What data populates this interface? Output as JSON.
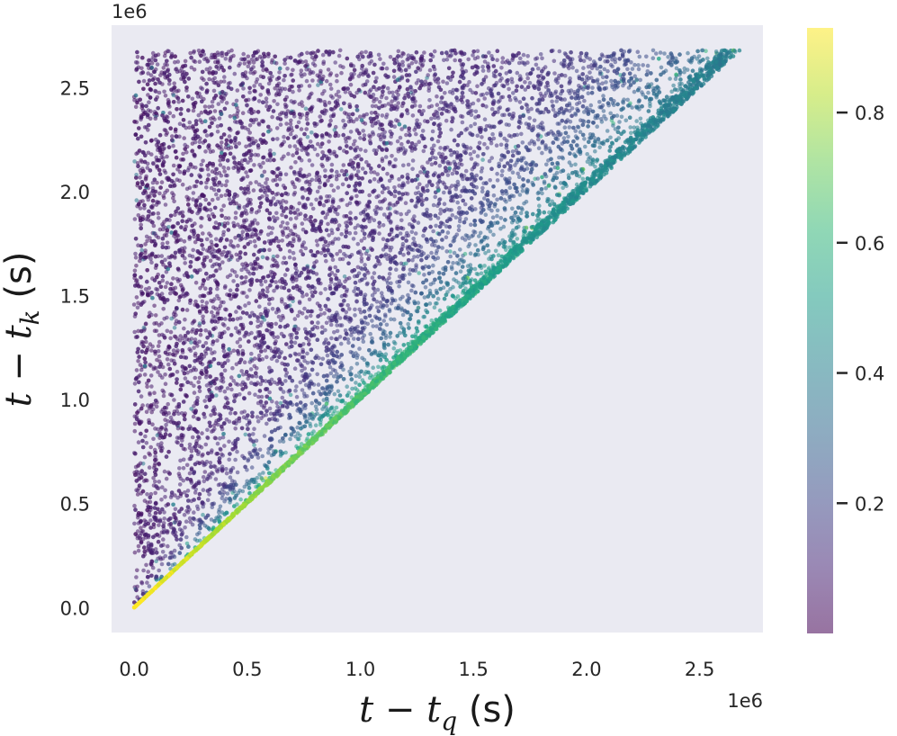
{
  "chart_data": {
    "type": "scatter",
    "title": "",
    "xlabel": "t − t_q (s)",
    "ylabel": "t − t_k (s)",
    "xlabel_parts": {
      "var": "t",
      "minus": " − ",
      "var2": "t",
      "sub": "q",
      "unit": " (s)"
    },
    "ylabel_parts": {
      "var": "t",
      "minus": " − ",
      "var2": "t",
      "sub": "k",
      "unit": " (s)"
    },
    "x_offset_label": "1e6",
    "y_offset_label": "1e6",
    "xlim": [
      -0.1,
      2.78
    ],
    "ylim": [
      -0.12,
      2.8
    ],
    "x_scale": 1000000,
    "y_scale": 1000000,
    "x_ticks": [
      0.0,
      0.5,
      1.0,
      1.5,
      2.0,
      2.5
    ],
    "x_tick_labels": [
      "0.0",
      "0.5",
      "1.0",
      "1.5",
      "2.0",
      "2.5"
    ],
    "y_ticks": [
      0.0,
      0.5,
      1.0,
      1.5,
      2.0,
      2.5
    ],
    "y_tick_labels": [
      "0.0",
      "0.5",
      "1.0",
      "1.5",
      "2.0",
      "2.5"
    ],
    "grid": false,
    "background_color": "#eaeaf2",
    "point_alpha": 0.55,
    "max_value": 2.68,
    "regions": [
      {
        "description_shape": "triangle",
        "vertices": [
          [
            0.0,
            0.0
          ],
          [
            0.0,
            2.68
          ],
          [
            2.68,
            2.68
          ]
        ],
        "dominant_color_value": 0.05
      },
      {
        "description_shape": "diagonal_band",
        "from": [
          0.0,
          0.0
        ],
        "to": [
          2.68,
          2.68
        ],
        "color_value_near_origin": 0.85,
        "color_value_far": 0.4
      }
    ],
    "colorbar": {
      "colormap": "viridis",
      "range": [
        0.0,
        0.93
      ],
      "ticks": [
        0.2,
        0.4,
        0.6,
        0.8
      ],
      "tick_labels": [
        "0.2",
        "0.4",
        "0.6",
        "0.8"
      ],
      "alpha": 0.55
    },
    "colors": {
      "viridis": [
        "#440154",
        "#482878",
        "#3e4989",
        "#31688e",
        "#26828e",
        "#1f9e89",
        "#35b779",
        "#6ece58",
        "#b5de2b",
        "#fde725"
      ]
    }
  }
}
